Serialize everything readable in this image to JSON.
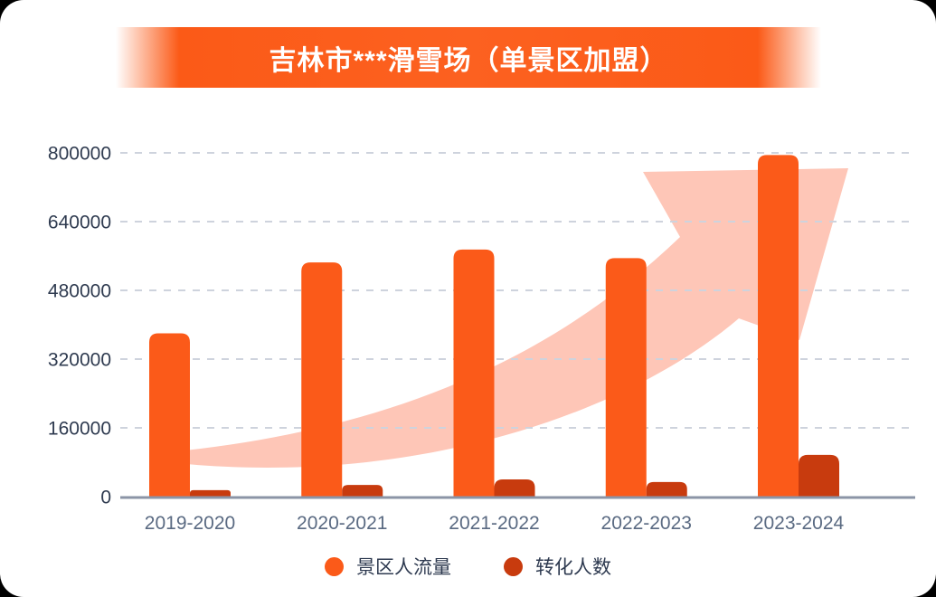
{
  "header": {
    "title": "吉林市***滑雪场（单景区加盟）",
    "banner_color": "#fb5a17",
    "title_color": "#ffffff"
  },
  "chart_data": {
    "type": "bar",
    "title": "吉林市***滑雪场（单景区加盟）",
    "categories": [
      "2019-2020",
      "2020-2021",
      "2021-2022",
      "2022-2023",
      "2023-2024"
    ],
    "series": [
      {
        "name": "景区人流量",
        "color": "#fb5a19",
        "values": [
          380000,
          545000,
          575000,
          555000,
          795000
        ]
      },
      {
        "name": "转化人数",
        "color": "#c83b0e",
        "values": [
          15000,
          27000,
          40000,
          34000,
          97000
        ]
      }
    ],
    "ylim": [
      0,
      800000
    ],
    "yticks": [
      0,
      160000,
      320000,
      480000,
      640000,
      800000
    ],
    "grid": "horizontal-dashed",
    "legend_position": "bottom",
    "annotations": [
      "growth-arrow-up-right"
    ],
    "colors": {
      "grid_line": "#ced3dd",
      "axis_line": "#8b94a6",
      "y_tick_label": "#2f3b50",
      "x_tick_label": "#5a6a82",
      "arrow_fill": "#fec6b7"
    }
  }
}
